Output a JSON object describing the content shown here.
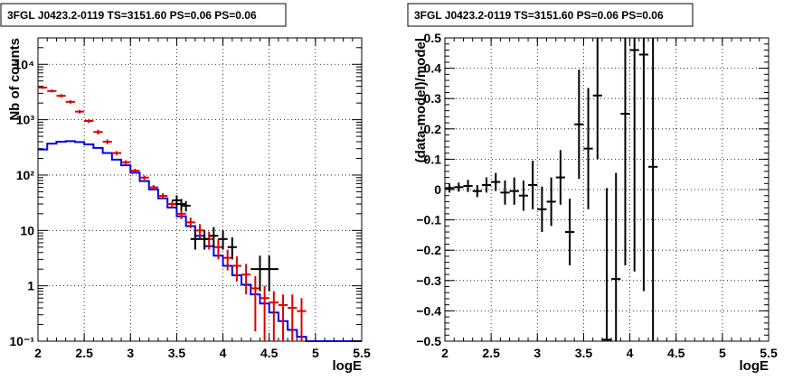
{
  "chart_data": [
    {
      "type": "histogram",
      "title": "3FGL J0423.2-0119 TS=3151.60 PS=0.06 PS=0.06",
      "xlabel": "logE",
      "ylabel": "Nb of counts",
      "xlim": [
        2,
        5.5
      ],
      "ylim": [
        0.1,
        30000
      ],
      "yscale": "log",
      "grid": true,
      "x_ticks": [
        "2",
        "2.5",
        "3",
        "3.5",
        "4",
        "4.5",
        "5",
        "5.5"
      ],
      "y_ticks": [
        "10⁻¹",
        "1",
        "10",
        "10²",
        "10³",
        "10⁴"
      ],
      "series": [
        {
          "color": "#0000ee",
          "style": "step",
          "x": [
            2.0,
            2.1,
            2.2,
            2.3,
            2.4,
            2.5,
            2.6,
            2.7,
            2.8,
            2.9,
            3.0,
            3.1,
            3.2,
            3.3,
            3.4,
            3.5,
            3.6,
            3.7,
            3.8,
            3.9,
            4.0,
            4.1,
            4.2,
            4.3,
            4.4,
            4.5,
            4.6,
            4.7,
            4.8,
            4.9,
            5.0,
            5.1,
            5.2,
            5.3,
            5.4
          ],
          "values": [
            290,
            370,
            400,
            410,
            395,
            360,
            310,
            250,
            190,
            150,
            110,
            78,
            55,
            38,
            26,
            18,
            12,
            8,
            5.2,
            3.5,
            2.3,
            1.55,
            1.05,
            0.7,
            0.48,
            0.33,
            0.23,
            0.16,
            0.12,
            0.1,
            0.1,
            0.1,
            0.1,
            0.1,
            0.1
          ]
        },
        {
          "color": "#dd0000",
          "style": "errorbars",
          "x": [
            2.05,
            2.15,
            2.25,
            2.35,
            2.45,
            2.55,
            2.65,
            2.75,
            2.85,
            2.95,
            3.05,
            3.15,
            3.25,
            3.35,
            3.45,
            3.55,
            3.65,
            3.75,
            3.85,
            3.95,
            4.05,
            4.15,
            4.25,
            4.35,
            4.45,
            4.55,
            4.65,
            4.75,
            4.85
          ],
          "values": [
            3800,
            3300,
            2700,
            2100,
            1400,
            950,
            600,
            400,
            250,
            170,
            120,
            90,
            60,
            42,
            30,
            20,
            14,
            10,
            7,
            5,
            3.2,
            2.3,
            1.6,
            0.9,
            0.6,
            0.5,
            0.45,
            0.4,
            0.35
          ],
          "yerr_low": [
            200,
            200,
            200,
            150,
            100,
            80,
            60,
            40,
            20,
            15,
            10,
            8,
            6,
            5,
            4,
            4,
            3,
            3,
            2.5,
            2,
            1.3,
            1.1,
            0.9,
            0.75,
            0.5,
            0.4,
            0.35,
            0.3,
            0.25
          ],
          "yerr_high": [
            200,
            200,
            200,
            150,
            100,
            80,
            60,
            40,
            20,
            15,
            10,
            8,
            6,
            5,
            4,
            4,
            3,
            3,
            2.5,
            2,
            1.3,
            1.1,
            0.9,
            0.6,
            0.4,
            0.3,
            0.25,
            0.3,
            0.25
          ]
        },
        {
          "color": "#000000",
          "style": "errorbars",
          "x": [
            3.5,
            3.55,
            3.6,
            3.7,
            3.8,
            3.9,
            4.0,
            4.1,
            4.4,
            4.5
          ],
          "x_half_width": [
            0.05,
            0.05,
            0.05,
            0.05,
            0.05,
            0.05,
            0.05,
            0.05,
            0.1,
            0.1
          ],
          "values": [
            35,
            30,
            28,
            7,
            7,
            8,
            7,
            5,
            2,
            2
          ],
          "yerr_low": [
            8,
            7,
            6,
            2.5,
            2.5,
            3,
            2.5,
            2,
            1.2,
            1.2
          ],
          "yerr_high": [
            8,
            7,
            6,
            3,
            3,
            3.5,
            3,
            2.5,
            1.5,
            1.5
          ]
        }
      ]
    },
    {
      "type": "scatter",
      "title": "3FGL J0423.2-0119 TS=3151.60 PS=0.06 PS=0.06",
      "xlabel": "logE",
      "ylabel": "(data-model)/model",
      "xlim": [
        2,
        5.5
      ],
      "ylim": [
        -0.5,
        0.5
      ],
      "grid": true,
      "x_ticks": [
        "2",
        "2.5",
        "3",
        "3.5",
        "4",
        "4.5",
        "5",
        "5.5"
      ],
      "y_ticks": [
        "−0.5",
        "−0.4",
        "−0.3",
        "−0.2",
        "−0.1",
        "0",
        "0.1",
        "0.2",
        "0.3",
        "0.4",
        "0.5"
      ],
      "series": [
        {
          "color": "#000000",
          "style": "errorbars",
          "x": [
            2.05,
            2.15,
            2.25,
            2.35,
            2.45,
            2.55,
            2.65,
            2.75,
            2.85,
            2.95,
            3.05,
            3.15,
            3.25,
            3.35,
            3.45,
            3.55,
            3.65,
            3.75,
            3.85,
            3.95,
            4.05,
            4.15,
            4.25
          ],
          "values": [
            0.005,
            0.008,
            0.012,
            -0.005,
            0.015,
            0.025,
            -0.01,
            -0.005,
            -0.02,
            0.015,
            -0.065,
            -0.04,
            0.04,
            -0.14,
            0.215,
            0.135,
            0.31,
            -0.495,
            -0.295,
            0.25,
            0.46,
            0.445,
            0.075
          ],
          "yerr": [
            0.015,
            0.015,
            0.02,
            0.02,
            0.025,
            0.03,
            0.04,
            0.045,
            0.05,
            0.08,
            0.075,
            0.08,
            0.09,
            0.11,
            0.18,
            0.2,
            0.21,
            0.5,
            0.35,
            0.5,
            0.73,
            0.78,
            0.9
          ]
        }
      ]
    }
  ]
}
